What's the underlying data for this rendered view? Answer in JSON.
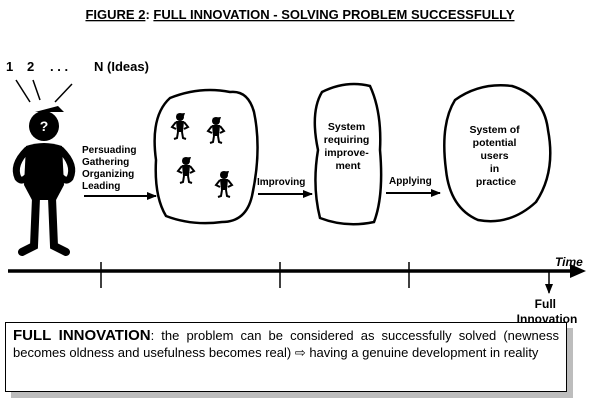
{
  "figure": {
    "title_prefix": "FIGURE 2",
    "title_sep": ": ",
    "title_main": "FULL INNOVATION - SOLVING PROBLEM SUCCESSFULLY"
  },
  "ideas": {
    "n1": "1",
    "n2": "2",
    "dots": ". . .",
    "label": "N (Ideas)"
  },
  "person": {
    "symbol": "?"
  },
  "actions": {
    "team": [
      "Persuading",
      "Gathering",
      "Organizing",
      "Leading"
    ],
    "improving": "Improving",
    "applying": "Applying"
  },
  "boxes": {
    "system": [
      "System",
      "requiring",
      "improve-",
      "ment"
    ],
    "users": [
      "System of",
      "potential",
      "users",
      "in",
      "practice"
    ]
  },
  "timeline": {
    "label": "Time",
    "end_label": [
      "Full",
      "Innovation"
    ]
  },
  "caption": {
    "lead": "FULL INNOVATION",
    "text": ": the problem can be considered as successfully solved (newness becomes oldness and usefulness becomes real) ⇨ having a genuine development in reality"
  }
}
